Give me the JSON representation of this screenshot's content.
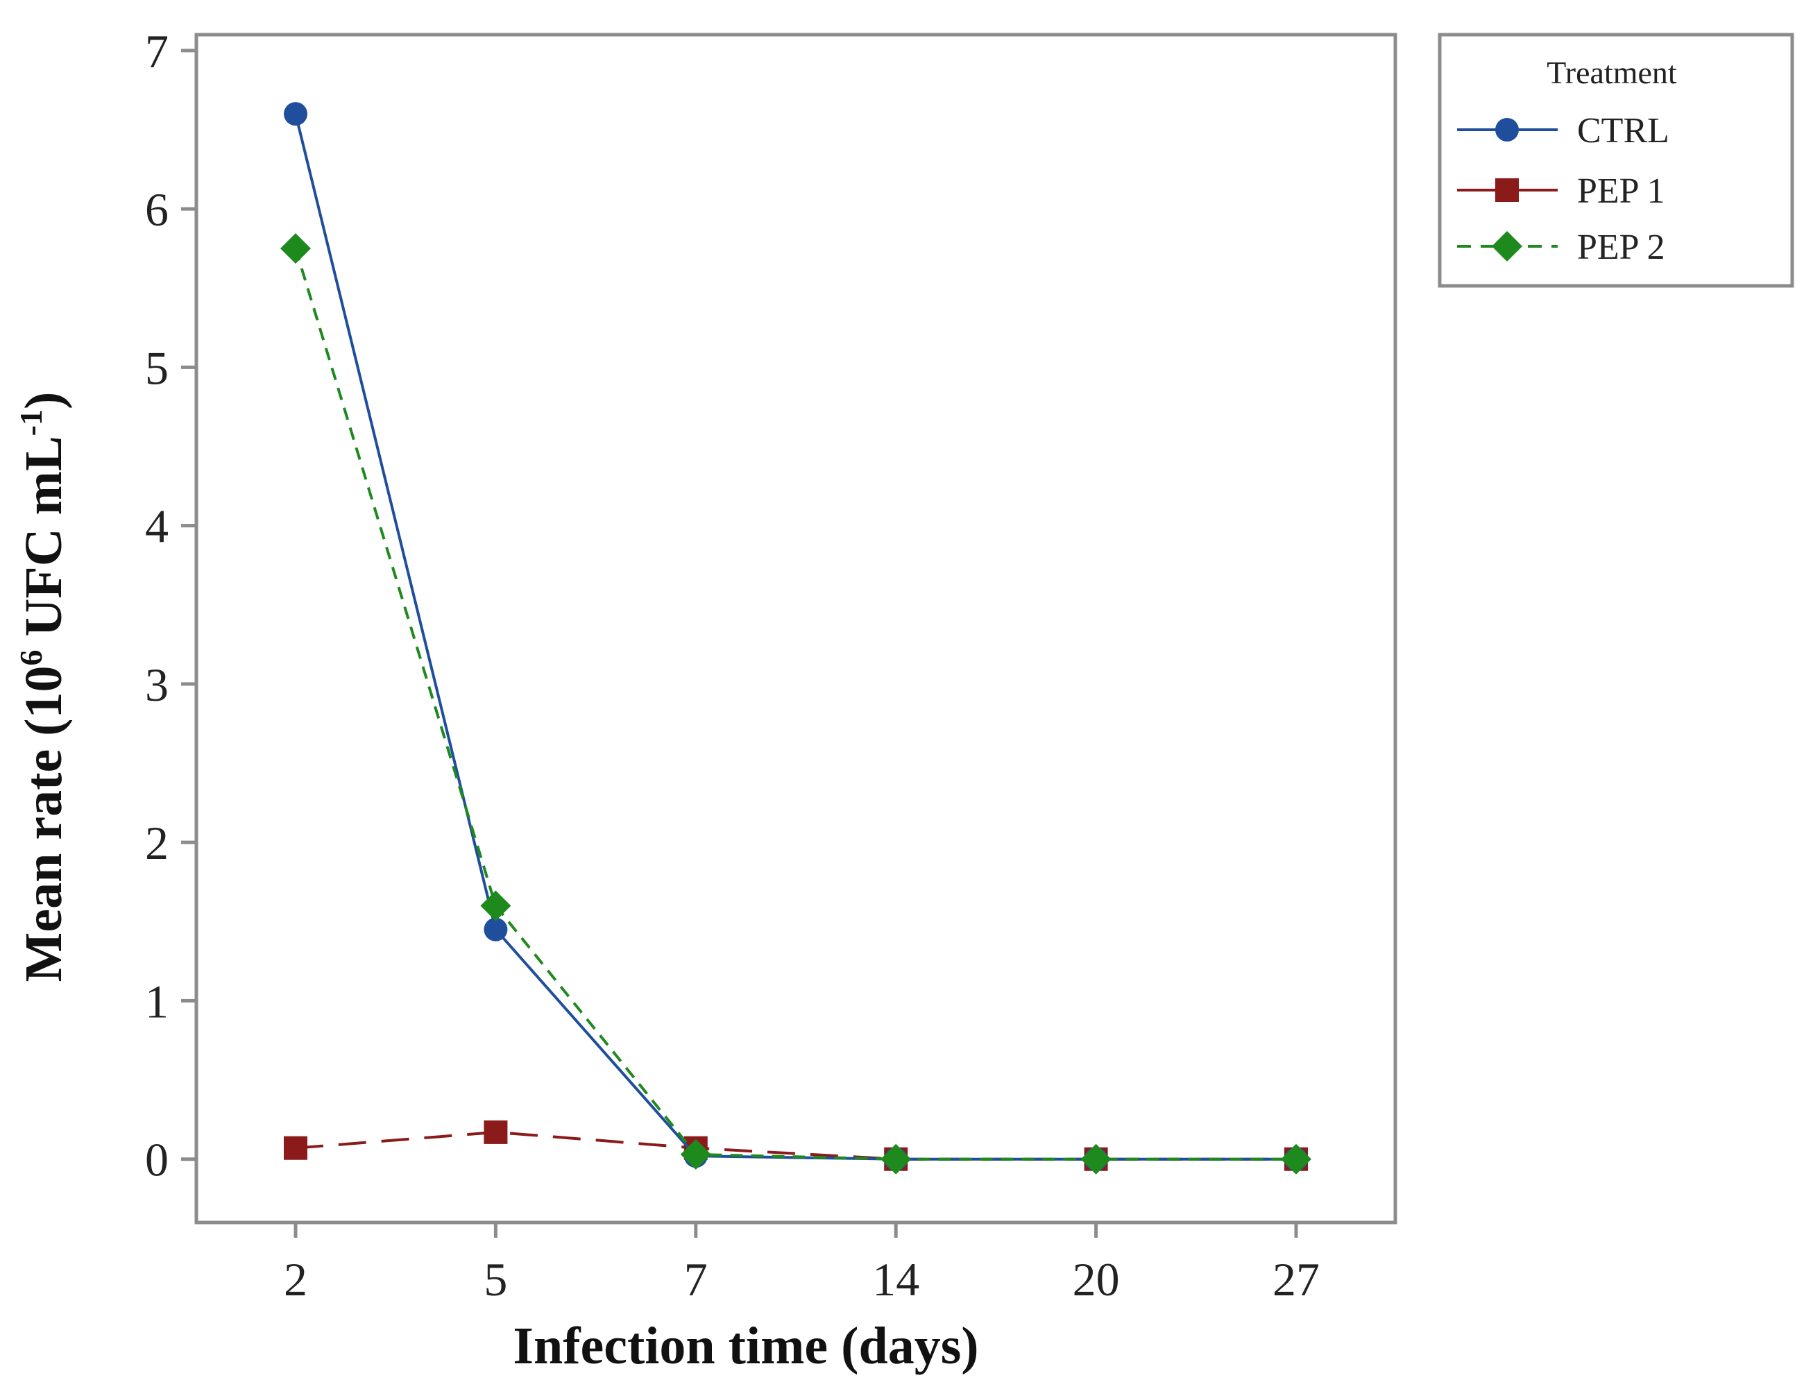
{
  "chart_data": {
    "type": "line",
    "categories": [
      "2",
      "5",
      "7",
      "14",
      "20",
      "27"
    ],
    "xlabel": "Infection time (days)",
    "ylabel_main": "Mean rate (10",
    "ylabel_sup1": "6",
    "ylabel_mid": " UFC mL",
    "ylabel_sup2": "-1",
    "ylabel_end": ")",
    "ylim": [
      -0.4,
      7.1
    ],
    "yticks": [
      "0",
      "1",
      "2",
      "3",
      "4",
      "5",
      "6",
      "7"
    ],
    "legend_title": "Treatment",
    "series": [
      {
        "name": "CTRL",
        "values": [
          6.6,
          1.45,
          0.02,
          0.0,
          0.0,
          0.0
        ],
        "color": "#1f4e9c",
        "marker": "circle",
        "dash": "solid"
      },
      {
        "name": "PEP 1",
        "values": [
          0.07,
          0.17,
          0.07,
          0.0,
          0.0,
          0.0
        ],
        "color": "#8b1a1a",
        "marker": "square",
        "dash": "dashed"
      },
      {
        "name": "PEP 2",
        "values": [
          5.75,
          1.6,
          0.03,
          0.0,
          0.0,
          0.0
        ],
        "color": "#1e8a1e",
        "marker": "diamond",
        "dash": "dotted-dash"
      }
    ]
  }
}
